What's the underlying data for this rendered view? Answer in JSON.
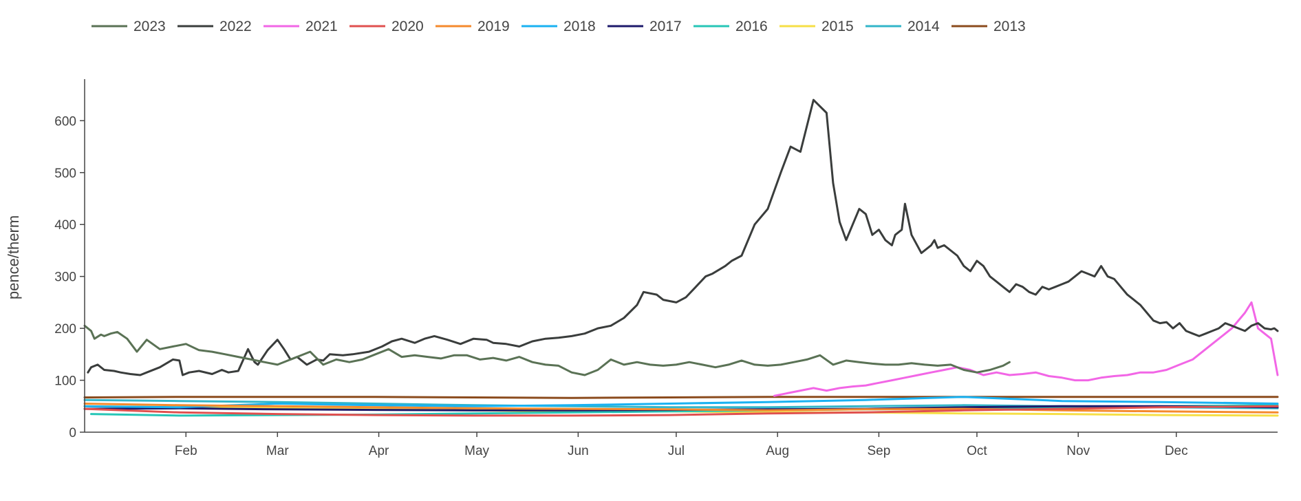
{
  "chart_data": {
    "type": "line",
    "title": "",
    "xlabel": "",
    "ylabel": "pence/therm",
    "xlim": [
      1,
      366
    ],
    "ylim": [
      0,
      680
    ],
    "yticks": [
      0,
      100,
      200,
      300,
      400,
      500,
      600
    ],
    "xticks": [
      {
        "label": "Feb",
        "day": 32
      },
      {
        "label": "Mar",
        "day": 60
      },
      {
        "label": "Apr",
        "day": 91
      },
      {
        "label": "May",
        "day": 121
      },
      {
        "label": "Jun",
        "day": 152
      },
      {
        "label": "Jul",
        "day": 182
      },
      {
        "label": "Aug",
        "day": 213
      },
      {
        "label": "Sep",
        "day": 244
      },
      {
        "label": "Oct",
        "day": 274
      },
      {
        "label": "Nov",
        "day": 305
      },
      {
        "label": "Dec",
        "day": 335
      }
    ],
    "grid": false,
    "legend_position": "top",
    "series": [
      {
        "name": "2023",
        "color": "#5a7255",
        "x": [
          1,
          3,
          4,
          6,
          7,
          9,
          11,
          14,
          17,
          20,
          24,
          28,
          32,
          36,
          40,
          44,
          48,
          52,
          56,
          60,
          64,
          70,
          74,
          78,
          82,
          86,
          90,
          94,
          98,
          102,
          106,
          110,
          114,
          118,
          122,
          126,
          130,
          134,
          138,
          142,
          146,
          150,
          154,
          158,
          162,
          166,
          170,
          174,
          178,
          182,
          186,
          190,
          194,
          198,
          202,
          206,
          210,
          214,
          218,
          222,
          226,
          230,
          234,
          238,
          242,
          246,
          250,
          254,
          258,
          262,
          266,
          270,
          274,
          278,
          282,
          284
        ],
        "y": [
          205,
          195,
          180,
          188,
          185,
          190,
          193,
          180,
          155,
          178,
          160,
          165,
          170,
          158,
          155,
          150,
          145,
          140,
          135,
          130,
          140,
          155,
          130,
          140,
          135,
          140,
          150,
          160,
          145,
          148,
          145,
          142,
          148,
          148,
          140,
          143,
          138,
          145,
          135,
          130,
          128,
          115,
          110,
          120,
          140,
          130,
          135,
          130,
          128,
          130,
          135,
          130,
          125,
          130,
          138,
          130,
          128,
          130,
          135,
          140,
          148,
          130,
          138,
          135,
          132,
          130,
          130,
          133,
          130,
          128,
          130,
          120,
          115,
          120,
          128,
          135
        ]
      },
      {
        "name": "2022",
        "color": "#3a3d3c",
        "x": [
          2,
          3,
          5,
          7,
          10,
          12,
          15,
          18,
          20,
          24,
          28,
          30,
          31,
          33,
          36,
          40,
          43,
          45,
          48,
          51,
          53,
          54,
          57,
          60,
          62,
          64,
          66,
          69,
          72,
          74,
          76,
          80,
          83,
          88,
          92,
          95,
          98,
          102,
          105,
          108,
          112,
          116,
          120,
          124,
          126,
          130,
          134,
          138,
          142,
          146,
          150,
          154,
          158,
          162,
          166,
          170,
          172,
          176,
          178,
          182,
          185,
          188,
          191,
          193,
          197,
          199,
          202,
          206,
          210,
          214,
          217,
          220,
          224,
          228,
          230,
          232,
          234,
          236,
          238,
          240,
          241,
          242,
          244,
          246,
          248,
          249,
          250,
          251,
          252,
          254,
          257,
          260,
          261,
          262,
          264,
          266,
          268,
          270,
          272,
          274,
          276,
          278,
          280,
          282,
          284,
          286,
          288,
          290,
          292,
          294,
          296,
          298,
          300,
          302,
          304,
          306,
          308,
          310,
          312,
          314,
          316,
          318,
          320,
          322,
          324,
          326,
          328,
          330,
          332,
          334,
          336,
          338,
          340,
          342,
          344,
          346,
          348,
          350,
          352,
          354,
          356,
          358,
          360,
          362,
          364,
          365,
          366
        ],
        "y": [
          115,
          125,
          130,
          120,
          118,
          115,
          112,
          110,
          115,
          125,
          140,
          138,
          110,
          115,
          118,
          112,
          120,
          115,
          118,
          160,
          135,
          130,
          158,
          178,
          160,
          140,
          145,
          130,
          140,
          138,
          150,
          148,
          150,
          155,
          165,
          175,
          180,
          172,
          180,
          185,
          178,
          170,
          180,
          178,
          172,
          170,
          165,
          175,
          180,
          182,
          185,
          190,
          200,
          205,
          220,
          245,
          270,
          265,
          255,
          250,
          260,
          280,
          300,
          305,
          320,
          330,
          340,
          400,
          430,
          500,
          550,
          540,
          640,
          615,
          480,
          405,
          370,
          400,
          430,
          420,
          400,
          380,
          390,
          370,
          360,
          380,
          385,
          390,
          440,
          380,
          345,
          360,
          370,
          355,
          360,
          350,
          340,
          320,
          310,
          330,
          320,
          300,
          290,
          280,
          270,
          285,
          280,
          270,
          265,
          280,
          275,
          280,
          285,
          290,
          300,
          310,
          305,
          300,
          320,
          300,
          295,
          280,
          265,
          255,
          245,
          230,
          215,
          210,
          212,
          200,
          210,
          195,
          190,
          185,
          190,
          195,
          200,
          210,
          205,
          200,
          195,
          205,
          210,
          200,
          198,
          200,
          195
        ]
      },
      {
        "name": "2021",
        "color": "#f266e6",
        "x": [
          212,
          216,
          220,
          224,
          228,
          232,
          236,
          240,
          244,
          248,
          252,
          256,
          260,
          264,
          268,
          272,
          276,
          280,
          284,
          288,
          292,
          296,
          300,
          304,
          308,
          312,
          316,
          320,
          324,
          328,
          332,
          336,
          340,
          344,
          348,
          352,
          356,
          358,
          360,
          362,
          364,
          366
        ],
        "y": [
          70,
          75,
          80,
          85,
          80,
          85,
          88,
          90,
          95,
          100,
          105,
          110,
          115,
          120,
          125,
          120,
          110,
          115,
          110,
          112,
          115,
          108,
          105,
          100,
          100,
          105,
          108,
          110,
          115,
          115,
          120,
          130,
          140,
          160,
          180,
          200,
          230,
          250,
          200,
          190,
          180,
          110
        ]
      },
      {
        "name": "2020",
        "color": "#e0504f",
        "x": [
          1,
          30,
          60,
          90,
          120,
          150,
          180,
          210,
          240,
          270,
          300,
          330,
          366
        ],
        "y": [
          45,
          38,
          35,
          33,
          32,
          32,
          33,
          36,
          38,
          42,
          45,
          48,
          50
        ]
      },
      {
        "name": "2019",
        "color": "#f58a2c",
        "x": [
          1,
          30,
          60,
          90,
          120,
          150,
          180,
          210,
          240,
          270,
          300,
          330,
          366
        ],
        "y": [
          55,
          52,
          50,
          48,
          46,
          45,
          44,
          42,
          44,
          45,
          42,
          40,
          38
        ]
      },
      {
        "name": "2018",
        "color": "#1ab2f2",
        "x": [
          1,
          30,
          60,
          90,
          120,
          150,
          180,
          210,
          240,
          270,
          300,
          330,
          366
        ],
        "y": [
          50,
          48,
          55,
          52,
          50,
          52,
          55,
          58,
          62,
          68,
          60,
          58,
          55
        ]
      },
      {
        "name": "2017",
        "color": "#1d1a6b",
        "x": [
          1,
          30,
          60,
          90,
          120,
          150,
          180,
          210,
          240,
          270,
          300,
          330,
          366
        ],
        "y": [
          45,
          46,
          44,
          43,
          42,
          42,
          43,
          44,
          45,
          48,
          50,
          50,
          48
        ]
      },
      {
        "name": "2016",
        "color": "#27c6b7",
        "x": [
          3,
          30,
          60,
          90,
          120,
          150,
          180,
          210,
          240,
          270,
          300,
          330,
          366
        ],
        "y": [
          35,
          32,
          33,
          34,
          36,
          38,
          40,
          42,
          44,
          45,
          48,
          50,
          52
        ]
      },
      {
        "name": "2015",
        "color": "#f6df46",
        "x": [
          1,
          30,
          60,
          90,
          120,
          150,
          180,
          210,
          240,
          270,
          300,
          330,
          366
        ],
        "y": [
          50,
          48,
          46,
          44,
          42,
          40,
          40,
          38,
          38,
          36,
          35,
          33,
          32
        ]
      },
      {
        "name": "2014",
        "color": "#33b6c9",
        "x": [
          1,
          30,
          60,
          90,
          120,
          150,
          180,
          210,
          240,
          270,
          300,
          330,
          366
        ],
        "y": [
          62,
          60,
          58,
          55,
          52,
          50,
          48,
          48,
          50,
          52,
          50,
          48,
          46
        ]
      },
      {
        "name": "2013",
        "color": "#8b4b1d",
        "x": [
          1,
          30,
          60,
          90,
          120,
          150,
          180,
          210,
          240,
          270,
          300,
          330,
          366
        ],
        "y": [
          67,
          68,
          68,
          68,
          67,
          66,
          67,
          68,
          68,
          68,
          68,
          68,
          68
        ]
      }
    ]
  }
}
